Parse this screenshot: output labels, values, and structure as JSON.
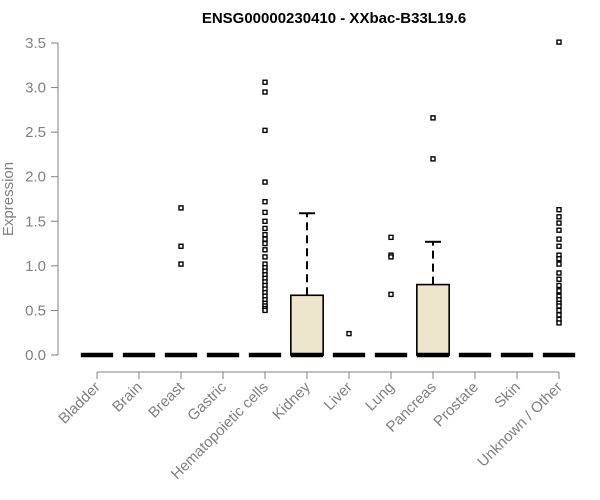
{
  "chart_data": {
    "type": "box",
    "title": "ENSG00000230410 - XXbac-B33L19.6",
    "xlabel": "",
    "ylabel": "Expression",
    "ylim": [
      0,
      3.5
    ],
    "yticks": [
      "0.0",
      "0.5",
      "1.0",
      "1.5",
      "2.0",
      "2.5",
      "3.0",
      "3.5"
    ],
    "box_fill": "#ede6cc",
    "categories": [
      "Bladder",
      "Brain",
      "Breast",
      "Gastric",
      "Hematopoietic cells",
      "Kidney",
      "Liver",
      "Lung",
      "Pancreas",
      "Prostate",
      "Skin",
      "Unknown / Other"
    ],
    "boxes": [
      {
        "q1": 0,
        "median": 0,
        "q3": 0,
        "whisker_low": 0,
        "whisker_high": 0,
        "outliers": []
      },
      {
        "q1": 0,
        "median": 0,
        "q3": 0,
        "whisker_low": 0,
        "whisker_high": 0,
        "outliers": []
      },
      {
        "q1": 0,
        "median": 0,
        "q3": 0,
        "whisker_low": 0,
        "whisker_high": 0,
        "outliers": [
          1.65,
          1.22,
          1.02
        ]
      },
      {
        "q1": 0,
        "median": 0,
        "q3": 0,
        "whisker_low": 0,
        "whisker_high": 0,
        "outliers": []
      },
      {
        "q1": 0,
        "median": 0,
        "q3": 0,
        "whisker_low": 0,
        "whisker_high": 0,
        "outliers": [
          3.06,
          2.95,
          2.52,
          1.94,
          1.72,
          1.6,
          1.5,
          1.42,
          1.35,
          1.3,
          1.25,
          1.18,
          1.1,
          1.02,
          0.98,
          0.94,
          0.9,
          0.86,
          0.82,
          0.78,
          0.74,
          0.7,
          0.66,
          0.62,
          0.58,
          0.55,
          0.52,
          0.5
        ]
      },
      {
        "q1": 0,
        "median": 0,
        "q3": 0.67,
        "whisker_low": 0,
        "whisker_high": 1.59,
        "outliers": []
      },
      {
        "q1": 0,
        "median": 0,
        "q3": 0,
        "whisker_low": 0,
        "whisker_high": 0,
        "outliers": [
          0.24
        ]
      },
      {
        "q1": 0,
        "median": 0,
        "q3": 0,
        "whisker_low": 0,
        "whisker_high": 0,
        "outliers": [
          1.32,
          1.12,
          1.1,
          0.68
        ]
      },
      {
        "q1": 0,
        "median": 0,
        "q3": 0.79,
        "whisker_low": 0,
        "whisker_high": 1.27,
        "outliers": [
          2.66,
          2.2
        ]
      },
      {
        "q1": 0,
        "median": 0,
        "q3": 0,
        "whisker_low": 0,
        "whisker_high": 0,
        "outliers": []
      },
      {
        "q1": 0,
        "median": 0,
        "q3": 0,
        "whisker_low": 0,
        "whisker_high": 0,
        "outliers": []
      },
      {
        "q1": 0,
        "median": 0,
        "q3": 0,
        "whisker_low": 0,
        "whisker_high": 0,
        "outliers": [
          3.51,
          1.63,
          1.55,
          1.48,
          1.4,
          1.3,
          1.22,
          1.12,
          1.08,
          1.02,
          0.92,
          0.85,
          0.78,
          0.72,
          0.66,
          0.62,
          0.58,
          0.55,
          0.5,
          0.45,
          0.4,
          0.36
        ]
      }
    ]
  }
}
